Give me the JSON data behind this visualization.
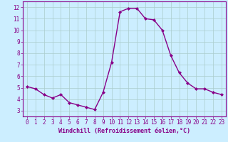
{
  "x": [
    0,
    1,
    2,
    3,
    4,
    5,
    6,
    7,
    8,
    9,
    10,
    11,
    12,
    13,
    14,
    15,
    16,
    17,
    18,
    19,
    20,
    21,
    22,
    23
  ],
  "y": [
    5.1,
    4.9,
    4.4,
    4.1,
    4.4,
    3.7,
    3.5,
    3.3,
    3.1,
    4.6,
    7.2,
    11.6,
    11.9,
    11.9,
    11.0,
    10.9,
    10.0,
    7.8,
    6.3,
    5.4,
    4.9,
    4.9,
    4.6,
    4.4
  ],
  "line_color": "#880088",
  "marker": "D",
  "marker_size": 2.0,
  "bg_color": "#cceeff",
  "grid_color": "#aacccc",
  "xlabel": "Windchill (Refroidissement éolien,°C)",
  "xlabel_color": "#880088",
  "tick_color": "#880088",
  "xlim": [
    -0.5,
    23.5
  ],
  "ylim": [
    2.5,
    12.5
  ],
  "yticks": [
    3,
    4,
    5,
    6,
    7,
    8,
    9,
    10,
    11,
    12
  ],
  "xticks": [
    0,
    1,
    2,
    3,
    4,
    5,
    6,
    7,
    8,
    9,
    10,
    11,
    12,
    13,
    14,
    15,
    16,
    17,
    18,
    19,
    20,
    21,
    22,
    23
  ],
  "spine_color": "#880088",
  "tick_fontsize": 5.5,
  "xlabel_fontsize": 6.0,
  "linewidth": 1.0
}
